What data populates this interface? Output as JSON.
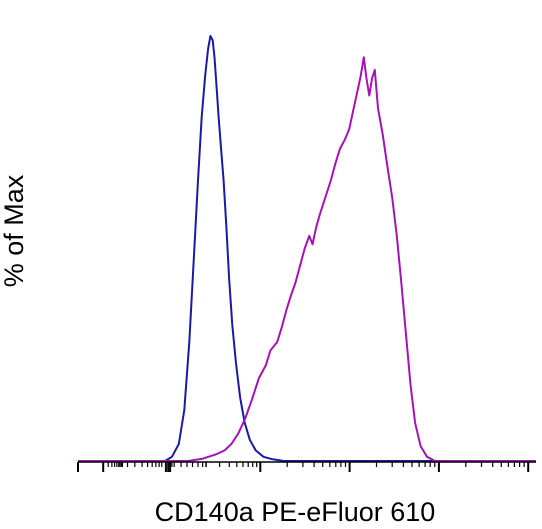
{
  "chart_data": {
    "type": "area",
    "title": "",
    "xlabel": "CD140a PE-eFluor 610",
    "ylabel": "% of Max",
    "x_scale": "biexponential",
    "y_scale": "linear",
    "ylim": [
      0,
      100
    ],
    "grid": false,
    "legend": "none",
    "x_tick_labels_shown": false,
    "y_tick_labels_shown": false,
    "series": [
      {
        "color": "#1a1aa6",
        "fill": "none",
        "points": [
          [
            0.0,
            0.0
          ],
          [
            0.19,
            0.0
          ],
          [
            0.205,
            1.0
          ],
          [
            0.22,
            4.0
          ],
          [
            0.232,
            12.0
          ],
          [
            0.243,
            28.0
          ],
          [
            0.253,
            48.0
          ],
          [
            0.262,
            66.0
          ],
          [
            0.27,
            81.0
          ],
          [
            0.278,
            91.0
          ],
          [
            0.284,
            97.0
          ],
          [
            0.289,
            100.0
          ],
          [
            0.294,
            99.0
          ],
          [
            0.298,
            95.0
          ],
          [
            0.302,
            89.0
          ],
          [
            0.307,
            81.0
          ],
          [
            0.312,
            74.0
          ],
          [
            0.318,
            66.0
          ],
          [
            0.324,
            55.0
          ],
          [
            0.33,
            43.0
          ],
          [
            0.337,
            32.0
          ],
          [
            0.345,
            23.0
          ],
          [
            0.354,
            15.0
          ],
          [
            0.364,
            9.0
          ],
          [
            0.375,
            5.0
          ],
          [
            0.388,
            2.5
          ],
          [
            0.405,
            1.0
          ],
          [
            0.425,
            0.4
          ],
          [
            0.45,
            0.0
          ],
          [
            1.0,
            0.0
          ]
        ]
      },
      {
        "color": "#a313b5",
        "fill": "none",
        "points": [
          [
            0.0,
            0.0
          ],
          [
            0.24,
            0.0
          ],
          [
            0.27,
            0.5
          ],
          [
            0.3,
            1.5
          ],
          [
            0.32,
            2.5
          ],
          [
            0.335,
            4.0
          ],
          [
            0.35,
            6.5
          ],
          [
            0.365,
            10.0
          ],
          [
            0.38,
            14.5
          ],
          [
            0.395,
            19.5
          ],
          [
            0.41,
            22.5
          ],
          [
            0.42,
            26.0
          ],
          [
            0.435,
            28.0
          ],
          [
            0.445,
            31.5
          ],
          [
            0.455,
            35.5
          ],
          [
            0.465,
            39.0
          ],
          [
            0.475,
            42.0
          ],
          [
            0.485,
            46.0
          ],
          [
            0.495,
            50.0
          ],
          [
            0.505,
            53.0
          ],
          [
            0.512,
            51.0
          ],
          [
            0.52,
            55.0
          ],
          [
            0.528,
            58.0
          ],
          [
            0.54,
            62.0
          ],
          [
            0.552,
            66.0
          ],
          [
            0.562,
            70.0
          ],
          [
            0.572,
            73.5
          ],
          [
            0.582,
            75.5
          ],
          [
            0.592,
            78.0
          ],
          [
            0.602,
            83.0
          ],
          [
            0.61,
            87.0
          ],
          [
            0.617,
            90.5
          ],
          [
            0.624,
            95.0
          ],
          [
            0.63,
            90.0
          ],
          [
            0.636,
            86.0
          ],
          [
            0.642,
            90.0
          ],
          [
            0.648,
            92.0
          ],
          [
            0.655,
            83.0
          ],
          [
            0.665,
            77.0
          ],
          [
            0.676,
            69.0
          ],
          [
            0.686,
            62.0
          ],
          [
            0.696,
            53.0
          ],
          [
            0.706,
            42.0
          ],
          [
            0.716,
            30.0
          ],
          [
            0.726,
            18.0
          ],
          [
            0.736,
            9.0
          ],
          [
            0.748,
            3.5
          ],
          [
            0.762,
            1.0
          ],
          [
            0.78,
            0.0
          ],
          [
            1.0,
            0.0
          ]
        ]
      }
    ]
  }
}
